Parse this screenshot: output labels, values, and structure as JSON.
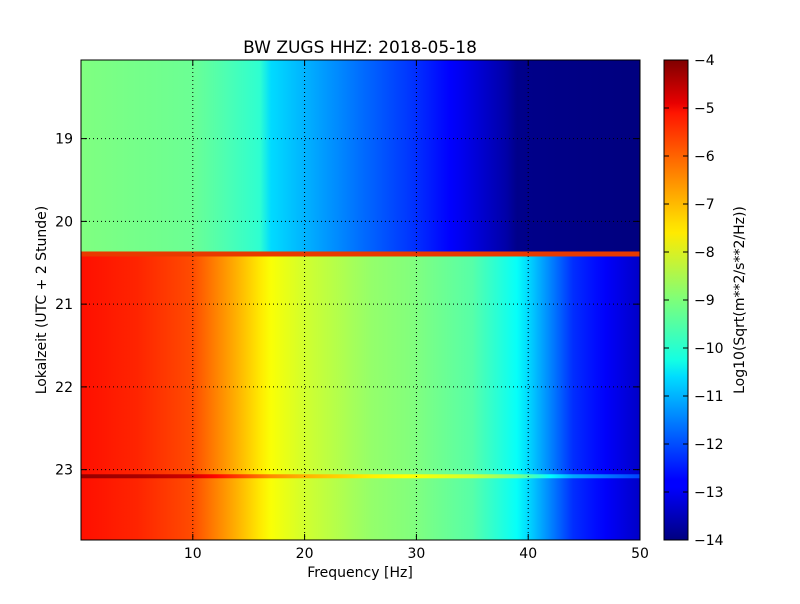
{
  "chart_data": {
    "type": "heatmap",
    "title": "BW ZUGS HHZ: 2018-05-18",
    "xlabel": "Frequency [Hz]",
    "ylabel": "Lokalzeit (UTC + 2 Stunde)",
    "xlim": [
      0,
      50
    ],
    "ylim": [
      18.05,
      23.85
    ],
    "xticks": [
      10,
      20,
      30,
      40,
      50
    ],
    "xtick_labels": [
      "10",
      "20",
      "30",
      "40",
      "50"
    ],
    "yticks": [
      19,
      20,
      21,
      22,
      23
    ],
    "ytick_labels": [
      "19",
      "20",
      "21",
      "22",
      "23"
    ],
    "grid": true,
    "colormap": "jet",
    "colorbar": {
      "label": "Log10(Sqrt(m**2/s**2/Hz))",
      "range": [
        -14,
        -4
      ],
      "ticks": [
        -4,
        -5,
        -6,
        -7,
        -8,
        -9,
        -10,
        -11,
        -12,
        -13,
        -14
      ],
      "tick_labels": [
        "−4",
        "−5",
        "−6",
        "−7",
        "−8",
        "−9",
        "−10",
        "−11",
        "−12",
        "−13",
        "−14"
      ]
    },
    "regions": [
      {
        "time_range": [
          18.05,
          20.4
        ],
        "profile_frequency_hz": [
          0,
          10,
          16,
          17,
          20,
          26,
          30,
          34,
          38,
          39,
          50
        ],
        "profile_value": [
          -9.0,
          -9.2,
          -9.8,
          -10.6,
          -11.0,
          -11.8,
          -12.3,
          -12.9,
          -13.6,
          -13.9,
          -14.0
        ]
      },
      {
        "time_range": [
          20.4,
          23.85
        ],
        "profile_frequency_hz": [
          0,
          5,
          10,
          14,
          17,
          20,
          26,
          30,
          35,
          39,
          44,
          50
        ],
        "profile_value": [
          -5.4,
          -5.6,
          -6.0,
          -7.0,
          -7.8,
          -8.2,
          -8.8,
          -9.0,
          -9.4,
          -10.2,
          -12.3,
          -13.3
        ]
      }
    ],
    "transition_time": 20.4,
    "highlighted_time": 23.08
  }
}
